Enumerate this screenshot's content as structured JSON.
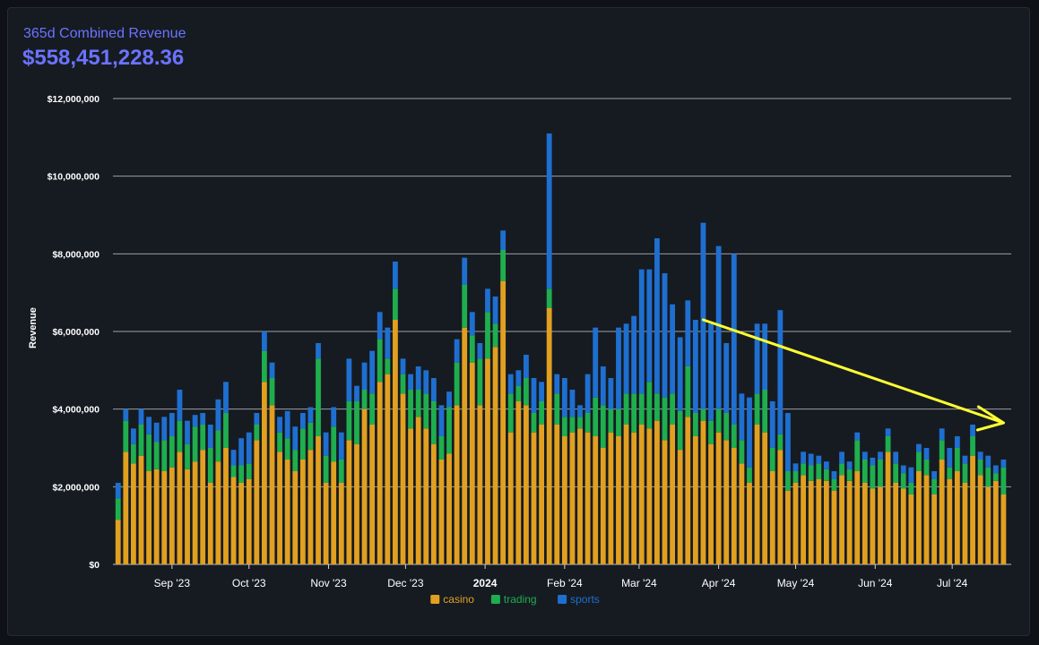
{
  "header": {
    "title": "365d Combined Revenue",
    "total": "$558,451,228.36"
  },
  "chart_data": {
    "type": "bar",
    "stacked": true,
    "ylabel": "Revenue",
    "xlabel": "",
    "ylim": [
      0,
      12000000
    ],
    "yticks": [
      0,
      2000000,
      4000000,
      6000000,
      8000000,
      10000000,
      12000000
    ],
    "ytick_labels": [
      "$0",
      "$2,000,000",
      "$4,000,000",
      "$6,000,000",
      "$8,000,000",
      "$10,000,000",
      "$12,000,000"
    ],
    "xticks": [
      {
        "label": "Sep '23",
        "date": "2023-09-01"
      },
      {
        "label": "Oct '23",
        "date": "2023-10-01"
      },
      {
        "label": "Nov '23",
        "date": "2023-11-01"
      },
      {
        "label": "Dec '23",
        "date": "2023-12-01"
      },
      {
        "label": "2024",
        "date": "2024-01-01"
      },
      {
        "label": "Feb '24",
        "date": "2024-02-01"
      },
      {
        "label": "Mar '24",
        "date": "2024-03-01"
      },
      {
        "label": "Apr '24",
        "date": "2024-04-01"
      },
      {
        "label": "May '24",
        "date": "2024-05-01"
      },
      {
        "label": "Jun '24",
        "date": "2024-06-01"
      },
      {
        "label": "Jul '24",
        "date": "2024-07-01"
      }
    ],
    "grid": true,
    "legend": "bottom-center",
    "colors": {
      "casino": "#e1a020",
      "trading": "#1fae4e",
      "sports": "#1f6fd0"
    },
    "series_names": [
      "casino",
      "trading",
      "sports"
    ],
    "dates": [
      "2023-08-11",
      "2023-08-14",
      "2023-08-17",
      "2023-08-20",
      "2023-08-23",
      "2023-08-26",
      "2023-08-29",
      "2023-09-01",
      "2023-09-04",
      "2023-09-07",
      "2023-09-10",
      "2023-09-13",
      "2023-09-16",
      "2023-09-19",
      "2023-09-22",
      "2023-09-25",
      "2023-09-28",
      "2023-10-01",
      "2023-10-04",
      "2023-10-07",
      "2023-10-10",
      "2023-10-13",
      "2023-10-16",
      "2023-10-19",
      "2023-10-22",
      "2023-10-25",
      "2023-10-28",
      "2023-10-31",
      "2023-11-03",
      "2023-11-06",
      "2023-11-09",
      "2023-11-12",
      "2023-11-15",
      "2023-11-18",
      "2023-11-21",
      "2023-11-24",
      "2023-11-27",
      "2023-11-30",
      "2023-12-03",
      "2023-12-06",
      "2023-12-09",
      "2023-12-12",
      "2023-12-15",
      "2023-12-18",
      "2023-12-21",
      "2023-12-24",
      "2023-12-27",
      "2023-12-30",
      "2024-01-02",
      "2024-01-05",
      "2024-01-08",
      "2024-01-11",
      "2024-01-14",
      "2024-01-17",
      "2024-01-20",
      "2024-01-23",
      "2024-01-26",
      "2024-01-29",
      "2024-02-01",
      "2024-02-04",
      "2024-02-07",
      "2024-02-10",
      "2024-02-13",
      "2024-02-16",
      "2024-02-19",
      "2024-02-22",
      "2024-02-25",
      "2024-02-28",
      "2024-03-02",
      "2024-03-05",
      "2024-03-08",
      "2024-03-11",
      "2024-03-14",
      "2024-03-17",
      "2024-03-20",
      "2024-03-23",
      "2024-03-26",
      "2024-03-29",
      "2024-04-01",
      "2024-04-04",
      "2024-04-07",
      "2024-04-10",
      "2024-04-13",
      "2024-04-16",
      "2024-04-19",
      "2024-04-22",
      "2024-04-25",
      "2024-04-28",
      "2024-05-01",
      "2024-05-04",
      "2024-05-07",
      "2024-05-10",
      "2024-05-13",
      "2024-05-16",
      "2024-05-19",
      "2024-05-22",
      "2024-05-25",
      "2024-05-28",
      "2024-05-31",
      "2024-06-03",
      "2024-06-06",
      "2024-06-09",
      "2024-06-12",
      "2024-06-15",
      "2024-06-18",
      "2024-06-21",
      "2024-06-24",
      "2024-06-27",
      "2024-06-30",
      "2024-07-03",
      "2024-07-06",
      "2024-07-09",
      "2024-07-12",
      "2024-07-15",
      "2024-07-18",
      "2024-07-21"
    ],
    "casino": [
      1150000,
      2900000,
      2600000,
      2800000,
      2400000,
      2450000,
      2400000,
      2500000,
      2900000,
      2450000,
      2650000,
      2950000,
      2100000,
      2650000,
      3000000,
      2250000,
      2100000,
      2200000,
      3200000,
      4700000,
      4100000,
      2900000,
      2700000,
      2400000,
      2700000,
      2950000,
      3300000,
      2100000,
      2650000,
      2100000,
      3200000,
      3100000,
      4000000,
      3600000,
      4700000,
      4900000,
      6300000,
      4400000,
      3500000,
      3800000,
      3500000,
      3100000,
      2700000,
      2850000,
      4100000,
      6100000,
      5200000,
      4100000,
      5300000,
      5600000,
      7300000,
      3400000,
      4200000,
      4100000,
      3400000,
      3600000,
      6600000,
      3600000,
      3300000,
      3400000,
      3500000,
      3400000,
      3300000,
      3000000,
      3400000,
      3300000,
      3600000,
      3400000,
      3600000,
      3500000,
      3700000,
      3200000,
      3600000,
      2950000,
      3800000,
      3300000,
      3700000,
      3100000,
      3400000,
      3200000,
      3000000,
      2600000,
      2100000,
      3600000,
      3400000,
      2400000,
      2950000,
      1900000,
      2100000,
      2300000,
      2150000,
      2200000,
      2150000,
      1900000,
      2300000,
      2150000,
      2400000,
      2100000,
      1950000,
      2000000,
      2900000,
      2100000,
      1950000,
      1800000,
      2400000,
      2300000,
      1800000,
      2700000,
      2200000,
      2400000,
      2100000,
      2800000,
      2300000,
      2000000,
      2150000,
      1800000
    ],
    "trading": [
      550000,
      800000,
      500000,
      800000,
      950000,
      700000,
      800000,
      800000,
      800000,
      650000,
      900000,
      650000,
      900000,
      800000,
      900000,
      300000,
      450000,
      400000,
      400000,
      800000,
      700000,
      500000,
      550000,
      550000,
      800000,
      700000,
      2000000,
      700000,
      900000,
      600000,
      1000000,
      1100000,
      500000,
      800000,
      1100000,
      400000,
      800000,
      500000,
      1000000,
      700000,
      900000,
      1100000,
      600000,
      1200000,
      1100000,
      1100000,
      700000,
      1200000,
      1200000,
      600000,
      800000,
      1000000,
      400000,
      700000,
      500000,
      600000,
      500000,
      800000,
      500000,
      400000,
      300000,
      500000,
      1000000,
      1100000,
      600000,
      700000,
      800000,
      1000000,
      800000,
      1200000,
      700000,
      1100000,
      800000,
      1000000,
      1300000,
      600000,
      300000,
      600000,
      600000,
      700000,
      600000,
      600000,
      400000,
      800000,
      1100000,
      600000,
      400000,
      500000,
      300000,
      300000,
      400000,
      400000,
      300000,
      300000,
      300000,
      300000,
      800000,
      600000,
      600000,
      700000,
      400000,
      500000,
      400000,
      300000,
      500000,
      400000,
      400000,
      500000,
      300000,
      600000,
      500000,
      500000,
      400000,
      500000,
      200000,
      700000
    ],
    "sports": [
      400000,
      300000,
      400000,
      400000,
      450000,
      500000,
      600000,
      600000,
      800000,
      600000,
      300000,
      300000,
      600000,
      800000,
      800000,
      400000,
      700000,
      800000,
      300000,
      500000,
      400000,
      400000,
      700000,
      600000,
      400000,
      400000,
      400000,
      600000,
      500000,
      700000,
      1100000,
      400000,
      700000,
      1100000,
      700000,
      800000,
      700000,
      400000,
      400000,
      600000,
      600000,
      600000,
      800000,
      400000,
      600000,
      700000,
      600000,
      400000,
      600000,
      700000,
      500000,
      500000,
      400000,
      600000,
      900000,
      500000,
      4000000,
      500000,
      1000000,
      700000,
      300000,
      1000000,
      1800000,
      1000000,
      800000,
      2100000,
      1800000,
      2000000,
      3200000,
      2900000,
      4000000,
      3200000,
      2300000,
      1900000,
      1700000,
      2400000,
      4800000,
      2500000,
      4200000,
      1800000,
      4400000,
      1200000,
      1800000,
      1800000,
      1700000,
      1200000,
      3200000,
      1500000,
      200000,
      300000,
      300000,
      200000,
      200000,
      200000,
      300000,
      200000,
      200000,
      200000,
      200000,
      200000,
      200000,
      300000,
      200000,
      400000,
      200000,
      300000,
      200000,
      300000,
      500000,
      300000,
      200000,
      300000,
      200000,
      300000,
      200000,
      200000
    ],
    "annotations": [
      {
        "type": "arrow",
        "color": "#ffff33",
        "from": "2024-03-26",
        "to": "2024-07-21"
      }
    ]
  }
}
